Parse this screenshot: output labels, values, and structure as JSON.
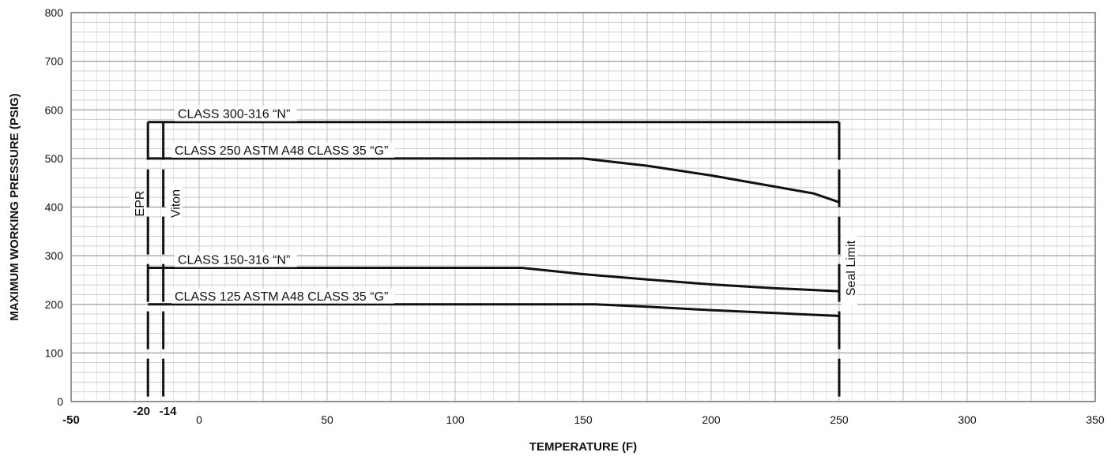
{
  "chart_data": {
    "type": "line",
    "xlabel": "TEMPERATURE (F)",
    "ylabel": "MAXIMUM WORKING PRESSURE (PSIG)",
    "xlim": [
      -50,
      350
    ],
    "ylim": [
      0,
      800
    ],
    "x_ticks": [
      -50,
      0,
      50,
      100,
      150,
      200,
      250,
      300,
      350
    ],
    "x_ticks_special": [
      -20,
      -14
    ],
    "y_ticks": [
      0,
      100,
      200,
      300,
      400,
      500,
      600,
      700,
      800
    ],
    "grid": true,
    "series": [
      {
        "name": "CLASS 300-316 “N”",
        "points": [
          [
            -20,
            575
          ],
          [
            250,
            575
          ]
        ]
      },
      {
        "name": "CLASS 250 ASTM A48 CLASS 35 “G”",
        "points": [
          [
            -20,
            500
          ],
          [
            150,
            500
          ],
          [
            175,
            485
          ],
          [
            200,
            465
          ],
          [
            225,
            442
          ],
          [
            240,
            428
          ],
          [
            250,
            410
          ]
        ]
      },
      {
        "name": "CLASS 150-316 “N”",
        "points": [
          [
            -20,
            275
          ],
          [
            126,
            275
          ],
          [
            150,
            262
          ],
          [
            175,
            251
          ],
          [
            200,
            241
          ],
          [
            225,
            233
          ],
          [
            250,
            227
          ]
        ]
      },
      {
        "name": "CLASS 125 ASTM A48 CLASS 35 “G”",
        "points": [
          [
            -20,
            200
          ],
          [
            155,
            200
          ],
          [
            175,
            195
          ],
          [
            200,
            188
          ],
          [
            225,
            182
          ],
          [
            250,
            176
          ]
        ]
      }
    ],
    "vertical_limits": [
      {
        "label": "EPR",
        "x": -20
      },
      {
        "label": "Viton",
        "x": -14
      },
      {
        "label": "Seal Limit",
        "x": 250
      }
    ]
  }
}
